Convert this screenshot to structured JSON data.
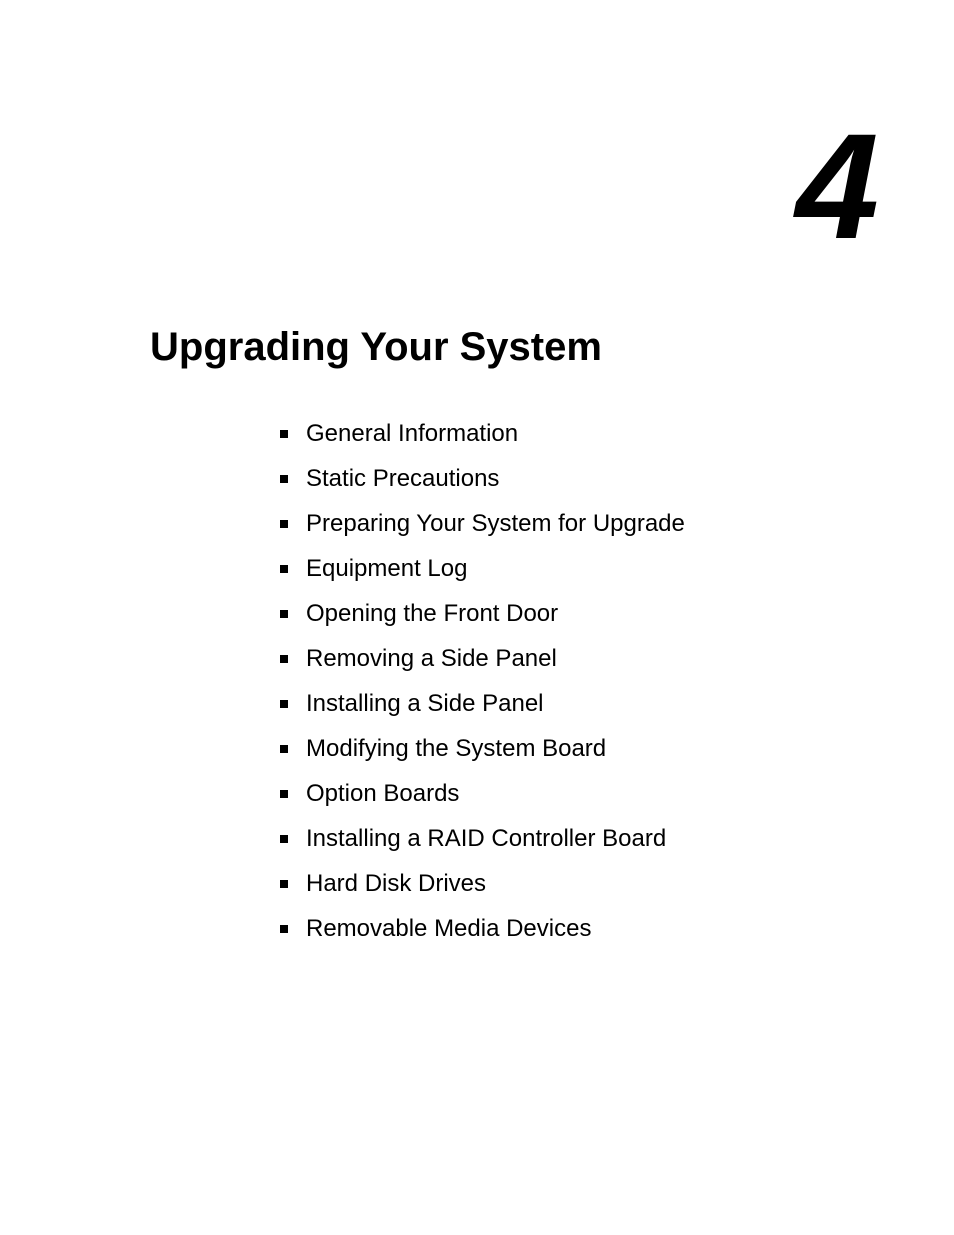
{
  "chapter": {
    "number": "4",
    "title": "Upgrading Your System"
  },
  "toc": {
    "items": [
      {
        "label": "General Information"
      },
      {
        "label": "Static Precautions"
      },
      {
        "label": "Preparing Your System for Upgrade"
      },
      {
        "label": "Equipment Log"
      },
      {
        "label": "Opening the Front Door"
      },
      {
        "label": "Removing a Side Panel"
      },
      {
        "label": "Installing a Side Panel"
      },
      {
        "label": "Modifying the System Board"
      },
      {
        "label": "Option Boards"
      },
      {
        "label": "Installing a RAID Controller Board"
      },
      {
        "label": "Hard Disk Drives"
      },
      {
        "label": "Removable Media Devices"
      }
    ]
  },
  "styling": {
    "background_color": "#ffffff",
    "text_color": "#000000",
    "chapter_number_fontsize": 150,
    "chapter_number_weight": 900,
    "chapter_number_style": "italic",
    "chapter_title_fontsize": 40,
    "chapter_title_weight": 700,
    "toc_fontsize": 24,
    "bullet_size": 8,
    "bullet_color": "#000000",
    "font_family": "Arial, Helvetica, sans-serif"
  }
}
